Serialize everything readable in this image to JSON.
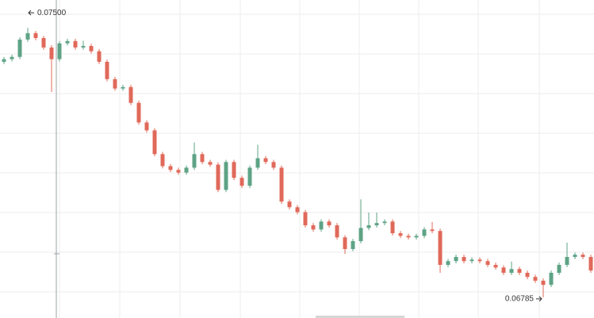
{
  "chart_data": {
    "type": "candlestick",
    "open": [
      0.0741,
      0.07417,
      0.07423,
      0.07469,
      0.07486,
      0.07473,
      0.07448,
      0.07417,
      0.07459,
      0.07465,
      0.07448,
      0.07452,
      0.07438,
      0.0741,
      0.07364,
      0.07339,
      0.07343,
      0.07301,
      0.07249,
      0.07228,
      0.07165,
      0.07133,
      0.07123,
      0.07116,
      0.07129,
      0.07165,
      0.07144,
      0.07137,
      0.0707,
      0.07144,
      0.07102,
      0.07081,
      0.07129,
      0.07154,
      0.07144,
      0.07129,
      0.07039,
      0.07024,
      0.07011,
      0.06976,
      0.06965,
      0.06986,
      0.06976,
      0.06944,
      0.06913,
      0.06934,
      0.06969,
      0.06976,
      0.06982,
      0.06986,
      0.06955,
      0.06948,
      0.06944,
      0.06948,
      0.06965,
      0.06961,
      0.06871,
      0.06881,
      0.06892,
      0.06881,
      0.06885,
      0.06881,
      0.06871,
      0.06864,
      0.0685,
      0.0686,
      0.0685,
      0.06839,
      0.06829,
      0.06818,
      0.0685,
      0.06871,
      0.06892,
      0.06898,
      0.06892
    ],
    "high": [
      0.07423,
      0.07429,
      0.07475,
      0.075,
      0.07492,
      0.07479,
      0.07454,
      0.07465,
      0.07471,
      0.07471,
      0.07466,
      0.07458,
      0.07444,
      0.07416,
      0.0737,
      0.07349,
      0.07349,
      0.07307,
      0.07255,
      0.07234,
      0.07171,
      0.07139,
      0.07129,
      0.07135,
      0.07196,
      0.07171,
      0.0715,
      0.07143,
      0.0715,
      0.0715,
      0.07108,
      0.07135,
      0.0719,
      0.0716,
      0.0715,
      0.07135,
      0.07045,
      0.0703,
      0.07017,
      0.06982,
      0.06992,
      0.06992,
      0.06982,
      0.0695,
      0.0694,
      0.07045,
      0.0701,
      0.0701,
      0.06992,
      0.06992,
      0.06961,
      0.06954,
      0.06954,
      0.06971,
      0.06985,
      0.06967,
      0.06887,
      0.06898,
      0.06898,
      0.06891,
      0.06891,
      0.06887,
      0.06877,
      0.0687,
      0.0688,
      0.06866,
      0.06856,
      0.06845,
      0.06835,
      0.06856,
      0.06877,
      0.0693,
      0.06904,
      0.06904,
      0.06898
    ],
    "low": [
      0.07404,
      0.07411,
      0.07417,
      0.07463,
      0.07467,
      0.07442,
      0.0733,
      0.07411,
      0.07453,
      0.07442,
      0.07442,
      0.07432,
      0.07404,
      0.07358,
      0.07333,
      0.07333,
      0.07295,
      0.07243,
      0.07222,
      0.07159,
      0.07127,
      0.07117,
      0.0711,
      0.0711,
      0.07123,
      0.07138,
      0.07131,
      0.07064,
      0.07064,
      0.07096,
      0.07075,
      0.07075,
      0.07123,
      0.07138,
      0.07123,
      0.07033,
      0.07018,
      0.07005,
      0.0697,
      0.06959,
      0.06959,
      0.0697,
      0.06938,
      0.069,
      0.06907,
      0.06928,
      0.06963,
      0.0697,
      0.06976,
      0.06949,
      0.06942,
      0.06938,
      0.06938,
      0.06942,
      0.06955,
      0.0685,
      0.06865,
      0.06875,
      0.06875,
      0.06875,
      0.06875,
      0.06865,
      0.06858,
      0.06844,
      0.06844,
      0.06844,
      0.06833,
      0.06823,
      0.06785,
      0.06812,
      0.06844,
      0.06865,
      0.06886,
      0.06886,
      0.0685
    ],
    "close": [
      0.07417,
      0.07423,
      0.07469,
      0.07486,
      0.07473,
      0.07448,
      0.07417,
      0.07459,
      0.07465,
      0.07448,
      0.07452,
      0.07438,
      0.0741,
      0.07364,
      0.07339,
      0.07343,
      0.07301,
      0.07249,
      0.07228,
      0.07165,
      0.07133,
      0.07123,
      0.07116,
      0.07129,
      0.07165,
      0.07144,
      0.07137,
      0.0707,
      0.07144,
      0.07102,
      0.07081,
      0.07129,
      0.07154,
      0.07144,
      0.07129,
      0.07039,
      0.07024,
      0.07011,
      0.06976,
      0.06965,
      0.06986,
      0.06976,
      0.06944,
      0.06913,
      0.06934,
      0.06969,
      0.06976,
      0.06982,
      0.06986,
      0.06955,
      0.06948,
      0.06944,
      0.06948,
      0.06965,
      0.06961,
      0.06871,
      0.06881,
      0.06892,
      0.06881,
      0.06885,
      0.06881,
      0.06871,
      0.06864,
      0.0685,
      0.0686,
      0.0685,
      0.06839,
      0.06829,
      0.06818,
      0.0685,
      0.06871,
      0.06892,
      0.06898,
      0.06892,
      0.06856
    ],
    "up_color": "#5ea386",
    "down_color": "#e0695a",
    "ylim": [
      0.0673,
      0.07574
    ],
    "annotations": [
      {
        "value": 0.075,
        "label": "0.07500",
        "side": "right"
      },
      {
        "value": 0.06785,
        "label": "0.06785",
        "side": "left"
      }
    ]
  }
}
